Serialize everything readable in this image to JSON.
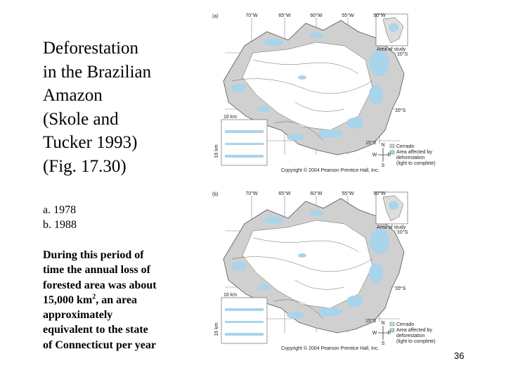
{
  "title_lines": [
    "Deforestation",
    "in the Brazilian",
    "Amazon",
    "(Skole and",
    "Tucker 1993)",
    "(Fig. 17.30)"
  ],
  "years": [
    "a. 1978",
    "b. 1988"
  ],
  "body_lines": [
    "During this period of",
    "time the annual loss of",
    "forested area was about",
    {
      "text": "15,000 km",
      "sup": "2",
      "after": ", an area"
    },
    "approximately",
    "equivalent to the state",
    "of Connecticut per year"
  ],
  "maps": [
    {
      "panel": "(a)",
      "longitudes": [
        "70°W",
        "65°W",
        "60°W",
        "55°W",
        "50°W"
      ],
      "inset_label": "Area of study",
      "latitudes": [
        "10°S",
        "10°S",
        "15°S"
      ],
      "scale": "16 km",
      "scale_side": "16 km",
      "compass": [
        "N",
        "W",
        "E",
        "S"
      ],
      "legend": [
        "Cerrado",
        "Area affected by",
        "deforestation",
        "(light to complete)"
      ],
      "copyright": "Copyright © 2004 Pearson Prentice Hall, Inc."
    },
    {
      "panel": "(b)",
      "longitudes": [
        "70°W",
        "65°W",
        "60°W",
        "55°W",
        "50°W"
      ],
      "inset_label": "Area of study",
      "latitudes": [
        "10°S",
        "10°S",
        "15°S"
      ],
      "scale": "16 km",
      "scale_side": "16 km",
      "compass": [
        "N",
        "W",
        "E",
        "S"
      ],
      "legend": [
        "Cerrado",
        "Area affected by",
        "deforestation",
        "(light to complete)"
      ],
      "copyright": "Copyright © 2004 Pearson Prentice Hall, Inc."
    }
  ],
  "page_number": "36"
}
